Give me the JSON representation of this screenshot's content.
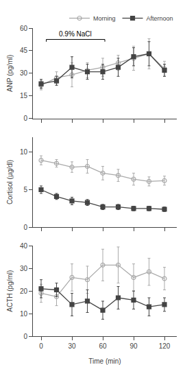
{
  "chart_data": [
    {
      "type": "line",
      "ylabel": "ANP (pg/ml)",
      "x": [
        0,
        15,
        30,
        45,
        60,
        75,
        90,
        105,
        120
      ],
      "series": [
        {
          "name": "Morning",
          "color": "#aaaaaa",
          "marker": "circle-open",
          "line_style": "solid",
          "values": [
            22,
            27,
            29,
            32,
            34,
            37,
            40,
            43,
            33
          ],
          "errors": [
            3,
            4,
            8,
            5,
            6,
            5,
            8,
            10,
            5
          ]
        },
        {
          "name": "Afternoon",
          "color": "#444444",
          "marker": "square",
          "line_style": "solid",
          "values": [
            23,
            25,
            34,
            31,
            31,
            34,
            41,
            43,
            32
          ],
          "errors": [
            3,
            3,
            7,
            5,
            5,
            6,
            6,
            8,
            4
          ]
        }
      ],
      "xlim": [
        -8,
        132
      ],
      "xticks": [
        0,
        30,
        60,
        90,
        120
      ],
      "ylim": [
        0,
        60
      ],
      "yticks": [
        0,
        15,
        30,
        45,
        60
      ],
      "grid": false,
      "legend": "upper right",
      "tick_labels": "y",
      "annotations": [
        {
          "text": "0.9% NaCl",
          "x_start": 5,
          "x_end": 62,
          "y": 52.5
        }
      ]
    },
    {
      "type": "line",
      "ylabel": "Cortisol (µg/dl)",
      "x": [
        0,
        15,
        30,
        45,
        60,
        75,
        90,
        105,
        120
      ],
      "series": [
        {
          "name": "Morning",
          "color": "#aaaaaa",
          "marker": "circle-open",
          "line_style": "solid",
          "values": [
            8.9,
            8.5,
            8.0,
            8.1,
            7.2,
            6.9,
            6.4,
            6.1,
            6.2
          ],
          "errors": [
            0.6,
            0.5,
            0.7,
            0.9,
            0.9,
            0.8,
            0.8,
            0.6,
            0.6
          ]
        },
        {
          "name": "Afternoon",
          "color": "#444444",
          "marker": "square",
          "line_style": "solid",
          "values": [
            5.0,
            4.1,
            3.5,
            3.3,
            2.7,
            2.7,
            2.5,
            2.5,
            2.4
          ],
          "errors": [
            0.5,
            0.4,
            0.5,
            0.4,
            0.35,
            0.35,
            0.3,
            0.3,
            0.3
          ]
        }
      ],
      "xlim": [
        -8,
        132
      ],
      "xticks": [
        0,
        30,
        60,
        90,
        120
      ],
      "ylim": [
        0,
        12
      ],
      "yticks": [
        0,
        5,
        10
      ],
      "grid": false,
      "tick_labels": "y"
    },
    {
      "type": "line",
      "ylabel": "ACTH (pg/ml)",
      "xlabel": "Time (min)",
      "x": [
        0,
        15,
        30,
        45,
        60,
        75,
        90,
        105,
        120
      ],
      "series": [
        {
          "name": "Morning",
          "color": "#aaaaaa",
          "marker": "circle-open",
          "line_style": "solid",
          "values": [
            19,
            17.5,
            26,
            25,
            31.5,
            31.5,
            26,
            28.5,
            25.5
          ],
          "errors": [
            4,
            4,
            6,
            6,
            7,
            8,
            6,
            6,
            5
          ]
        },
        {
          "name": "Afternoon",
          "color": "#444444",
          "marker": "square",
          "line_style": "solid",
          "values": [
            21,
            20.5,
            14,
            15.5,
            11.5,
            17,
            16,
            13,
            14
          ],
          "errors": [
            4,
            3,
            5,
            5,
            4,
            5,
            4,
            4,
            3
          ]
        }
      ],
      "xlim": [
        -8,
        132
      ],
      "xticks": [
        0,
        30,
        60,
        90,
        120
      ],
      "ylim": [
        0,
        40
      ],
      "yticks": [
        0,
        10,
        20,
        30,
        40
      ],
      "grid": false
    }
  ]
}
